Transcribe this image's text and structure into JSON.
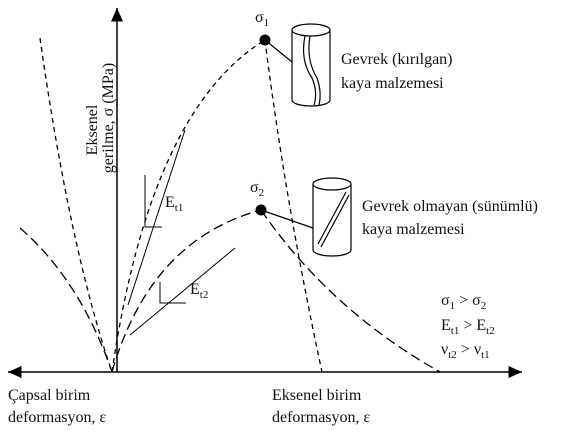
{
  "axes": {
    "y_label": [
      "Eksenel",
      "gerilme, σ (MPa)"
    ],
    "x_left_label": [
      "Çapsal birim",
      "deformasyon, ε"
    ],
    "x_right_label": [
      "Eksenel birim",
      "deformasyon, ε"
    ]
  },
  "points": [
    {
      "label": [
        "σ",
        "1"
      ]
    },
    {
      "label": [
        "σ",
        "2"
      ]
    }
  ],
  "moduli": [
    [
      "E",
      "t1"
    ],
    [
      "E",
      "t2"
    ]
  ],
  "materials": [
    [
      "Gevrek (kırılgan)",
      "kaya malzemesi"
    ],
    [
      "Gevrek olmayan (sünümlü)",
      "kaya malzemesi"
    ]
  ],
  "comparisons": [
    [
      "σ",
      "1",
      " > σ",
      "2"
    ],
    [
      "E",
      "t1",
      " > E",
      "t2"
    ],
    [
      "ν",
      "t2",
      " > ν",
      "t1"
    ]
  ]
}
